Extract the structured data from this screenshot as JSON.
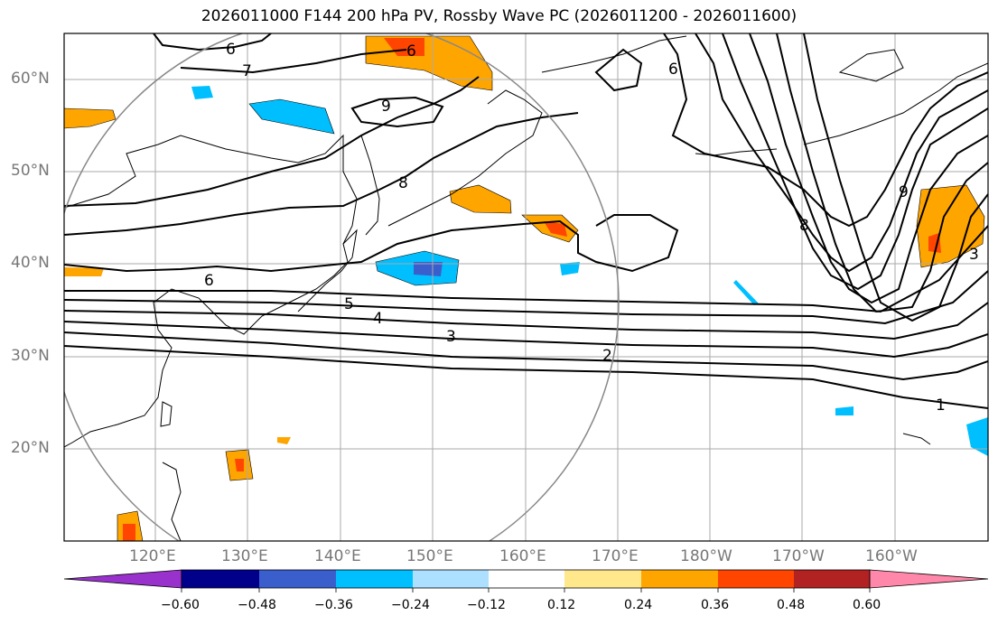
{
  "title": "2026011000 F144 200 hPa PV, Rossby Wave PC (2026011200 - 2026011600)",
  "lat_labels": [
    "60°N",
    "50°N",
    "40°N",
    "30°N",
    "20°N"
  ],
  "lon_labels": [
    "120°E",
    "130°E",
    "140°E",
    "150°E",
    "160°E",
    "170°E",
    "180°W",
    "170°W",
    "160°W"
  ],
  "contour_labels": [
    "6",
    "7",
    "9",
    "8",
    "6",
    "6",
    "9",
    "8",
    "5",
    "4",
    "3",
    "2",
    "1",
    "6",
    "3"
  ],
  "colorbar": {
    "ticks": [
      "−0.60",
      "−0.48",
      "−0.36",
      "−0.24",
      "−0.12",
      "0.12",
      "0.24",
      "0.36",
      "0.48",
      "0.60"
    ],
    "colors": [
      "#9932CC",
      "#00008B",
      "#3A5FCD",
      "#00BFFF",
      "#ADDFFF",
      "#FFFFFF",
      "#FFE88C",
      "#FFA500",
      "#FF4500",
      "#B22222",
      "#FF88AA"
    ]
  }
}
